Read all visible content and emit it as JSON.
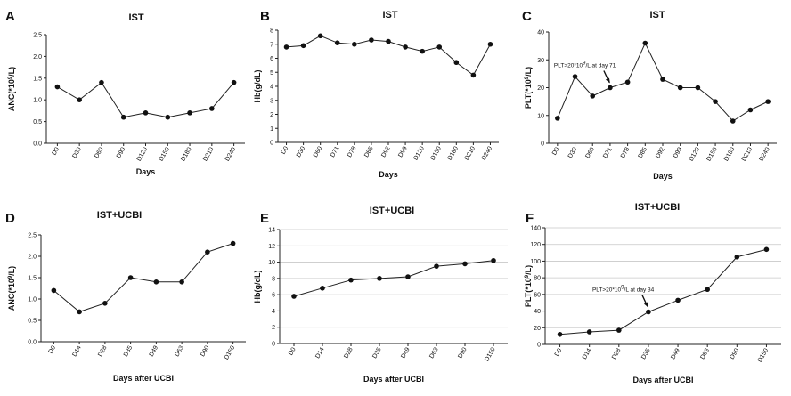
{
  "chart_data": [
    {
      "panel": "A",
      "type": "line",
      "title": "IST",
      "xlabel": "Days",
      "ylabel": "ANC(*10⁹/L)",
      "categories": [
        "D0",
        "D30",
        "D60",
        "D90",
        "D120",
        "D150",
        "D180",
        "D210",
        "D240"
      ],
      "values": [
        1.3,
        1.0,
        1.4,
        0.6,
        0.7,
        0.6,
        0.7,
        0.8,
        1.4
      ],
      "ylim": [
        0,
        2.5
      ],
      "yticks": [
        0,
        0.5,
        1.0,
        1.5,
        2.0,
        2.5
      ],
      "ytick_labels": [
        "0.0",
        "0.5",
        "1.0",
        "1.5",
        "2.0",
        "2.5"
      ],
      "grid": false
    },
    {
      "panel": "B",
      "type": "line",
      "title": "IST",
      "xlabel": "Days",
      "ylabel": "Hb(g/dL)",
      "categories": [
        "D0",
        "D30",
        "D60",
        "D71",
        "D78",
        "D85",
        "D92",
        "D99",
        "D120",
        "D150",
        "D180",
        "D210",
        "D240"
      ],
      "values": [
        6.8,
        6.9,
        7.6,
        7.1,
        7.0,
        7.3,
        7.2,
        6.8,
        6.5,
        6.8,
        5.7,
        4.8,
        7.0
      ],
      "ylim": [
        0,
        8
      ],
      "yticks": [
        0,
        1,
        2,
        3,
        4,
        5,
        6,
        7,
        8
      ],
      "ytick_labels": [
        "0",
        "1",
        "2",
        "3",
        "4",
        "5",
        "6",
        "7",
        "8"
      ],
      "grid": false
    },
    {
      "panel": "C",
      "type": "line",
      "title": "IST",
      "xlabel": "Days",
      "ylabel": "PLT(*10⁹/L)",
      "categories": [
        "D0",
        "D30",
        "D60",
        "D71",
        "D78",
        "D85",
        "D92",
        "D99",
        "D120",
        "D150",
        "D180",
        "D210",
        "D240"
      ],
      "values": [
        9,
        24,
        17,
        20,
        22,
        36,
        23,
        20,
        20,
        15,
        8,
        12,
        15
      ],
      "ylim": [
        0,
        40
      ],
      "yticks": [
        0,
        10,
        20,
        30,
        40
      ],
      "ytick_labels": [
        "0",
        "10",
        "20",
        "30",
        "40"
      ],
      "grid": false,
      "annotation": {
        "text": "PLT>20*10⁹/L at day 71",
        "category": "D71"
      }
    },
    {
      "panel": "D",
      "type": "line",
      "title": "IST+UCBI",
      "xlabel": "Days after UCBI",
      "ylabel": "ANC(*10⁹/L)",
      "categories": [
        "D0",
        "D14",
        "D28",
        "D35",
        "D49",
        "D63",
        "D90",
        "D150"
      ],
      "values": [
        1.2,
        0.7,
        0.9,
        1.5,
        1.4,
        1.4,
        2.1,
        2.3
      ],
      "ylim": [
        0,
        2.5
      ],
      "yticks": [
        0,
        0.5,
        1.0,
        1.5,
        2.0,
        2.5
      ],
      "ytick_labels": [
        "0.0",
        "0.5",
        "1.0",
        "1.5",
        "2.0",
        "2.5"
      ],
      "grid": false
    },
    {
      "panel": "E",
      "type": "line",
      "title": "IST+UCBI",
      "xlabel": "Days after UCBI",
      "ylabel": "Hb(g/dL)",
      "categories": [
        "D0",
        "D14",
        "D28",
        "D35",
        "D49",
        "D63",
        "D90",
        "D150"
      ],
      "values": [
        5.8,
        6.8,
        7.8,
        8.0,
        8.2,
        9.5,
        9.8,
        10.2
      ],
      "ylim": [
        0,
        14
      ],
      "yticks": [
        0,
        2,
        4,
        6,
        8,
        10,
        12,
        14
      ],
      "ytick_labels": [
        "0",
        "2",
        "4",
        "6",
        "8",
        "10",
        "12",
        "14"
      ],
      "grid": true
    },
    {
      "panel": "F",
      "type": "line",
      "title": "IST+UCBI",
      "xlabel": "Days after UCBI",
      "ylabel": "PLT(*10⁹/L)",
      "categories": [
        "D0",
        "D14",
        "D28",
        "D35",
        "D49",
        "D63",
        "D90",
        "D150"
      ],
      "values": [
        12,
        15,
        17,
        39,
        53,
        66,
        105,
        114
      ],
      "ylim": [
        0,
        140
      ],
      "yticks": [
        0,
        20,
        40,
        60,
        80,
        100,
        120,
        140
      ],
      "ytick_labels": [
        "0",
        "20",
        "40",
        "60",
        "80",
        "100",
        "120",
        "140"
      ],
      "grid": true,
      "annotation": {
        "text": "PLT>20*10⁹/L at day 34",
        "category": "D35"
      }
    }
  ]
}
